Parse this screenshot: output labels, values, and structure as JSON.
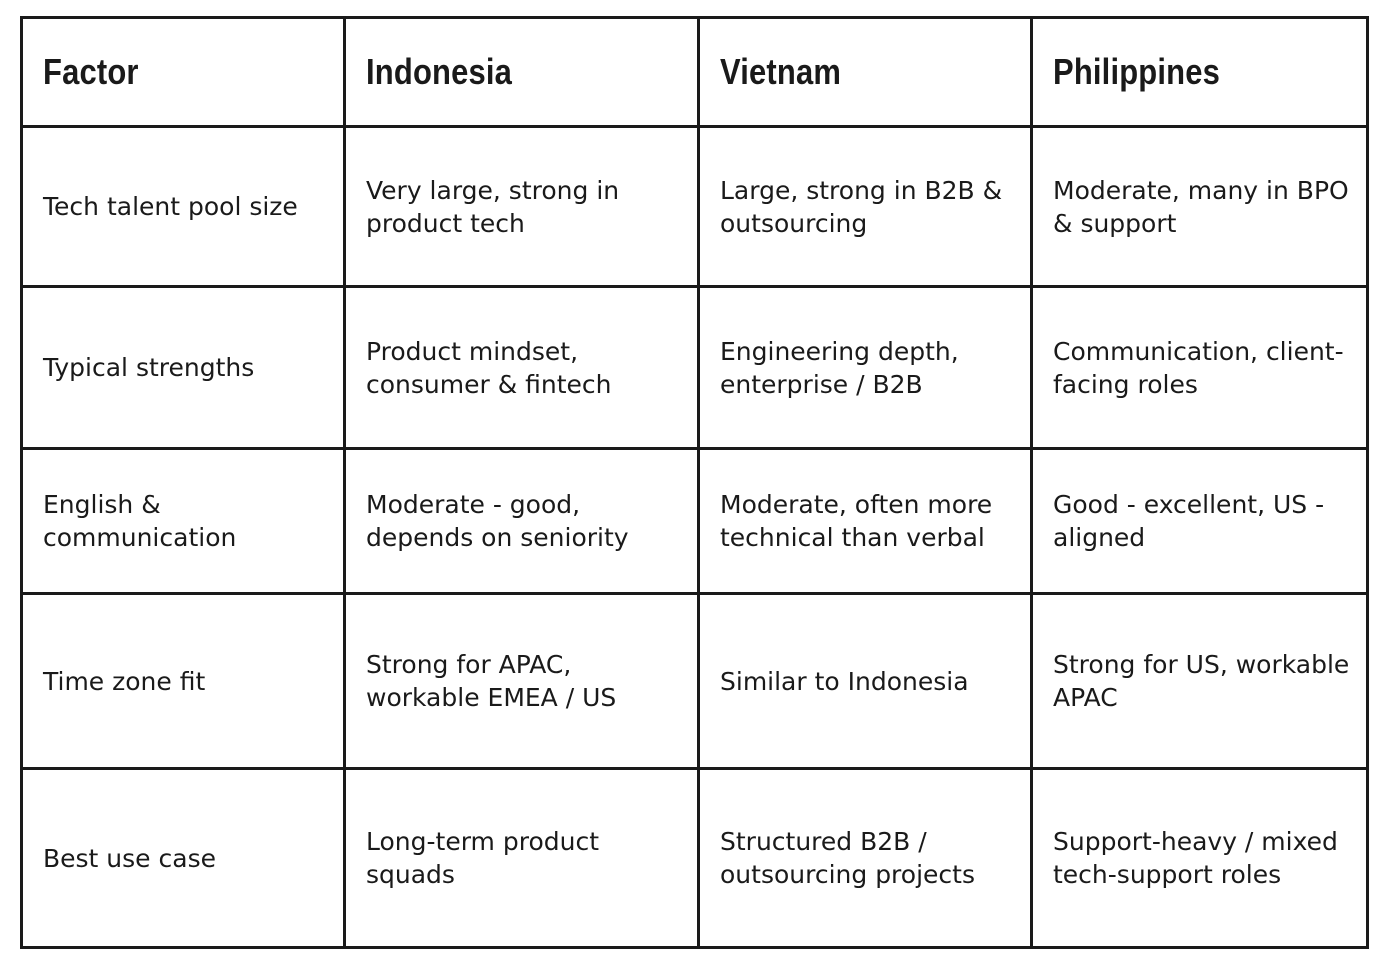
{
  "table": {
    "headers": [
      "Factor",
      "Indonesia",
      "Vietnam",
      "Philippines"
    ],
    "rows": [
      [
        "Tech talent pool size",
        "Very large, strong in product tech",
        "Large, strong in B2B & outsourcing",
        "Moderate, many in BPO & support"
      ],
      [
        "Typical strengths",
        "Product mindset, consumer & fintech",
        "Engineering depth, enterprise / B2B",
        "Communication, client-facing roles"
      ],
      [
        "English & communication",
        "Moderate - good, depends on seniority",
        "Moderate, often more technical than verbal",
        "Good - excellent, US - aligned"
      ],
      [
        "Time zone fit",
        "Strong for APAC, workable EMEA / US",
        "Similar to Indonesia",
        "Strong for US, workable APAC"
      ],
      [
        "Best use case",
        "Long-term product squads",
        "Structured B2B / outsourcing projects",
        "Support-heavy / mixed tech-support roles"
      ]
    ]
  }
}
